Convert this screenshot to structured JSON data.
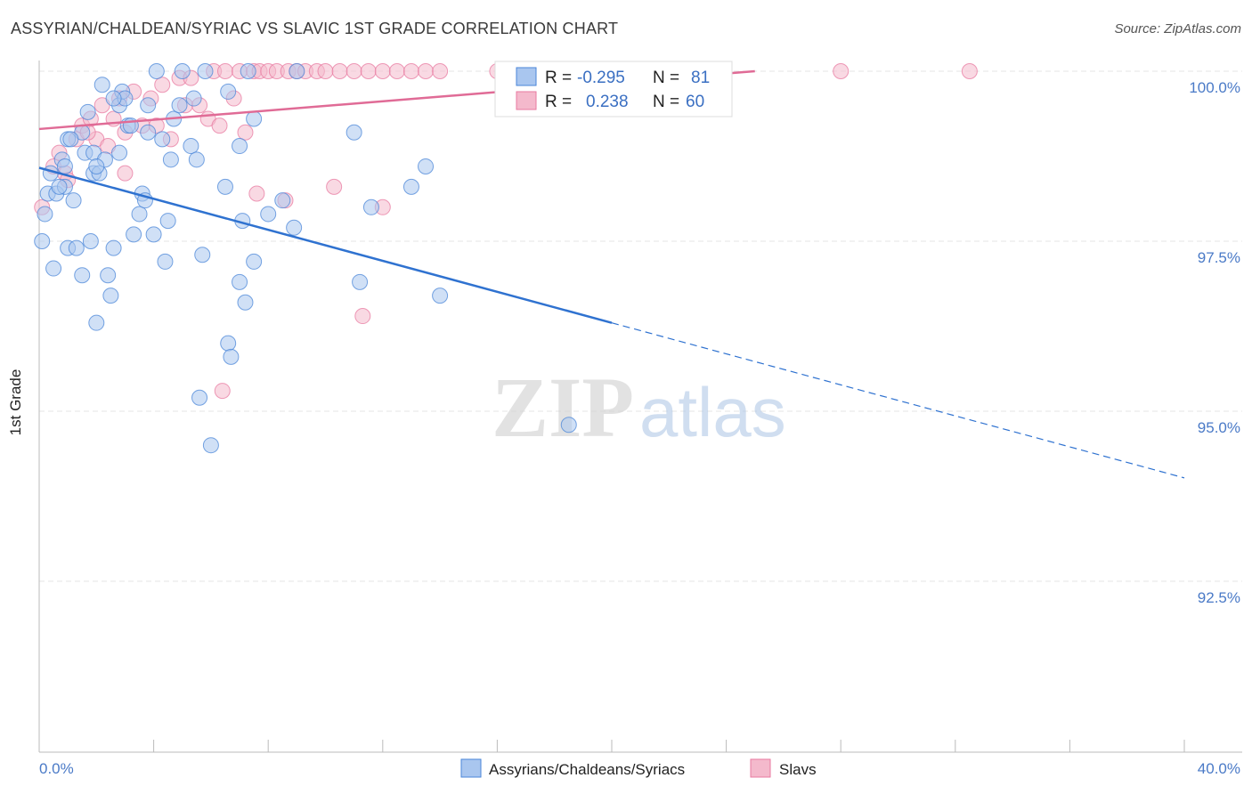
{
  "title": "ASSYRIAN/CHALDEAN/SYRIAC VS SLAVIC 1ST GRADE CORRELATION CHART",
  "source": "Source: ZipAtlas.com",
  "watermark": {
    "zip": "ZIP",
    "atlas": "atlas"
  },
  "chart_data": {
    "type": "scatter",
    "title": "ASSYRIAN/CHALDEAN/SYRIAC VS SLAVIC 1ST GRADE CORRELATION CHART",
    "xlabel": "",
    "ylabel": "1st Grade",
    "xlim": [
      0,
      40
    ],
    "ylim": [
      90.2,
      100.4
    ],
    "x_tick_labels": [
      "0.0%",
      "40.0%"
    ],
    "y_ticks": [
      92.5,
      95.0,
      97.5,
      100.0
    ],
    "y_tick_labels": [
      "92.5%",
      "95.0%",
      "97.5%",
      "100.0%"
    ],
    "grid": true,
    "legend_position": "bottom",
    "colors": {
      "blue": "#4a86d8",
      "pink": "#e87aa0",
      "blue_fill": "#a9c6ef",
      "pink_fill": "#f4b9cc"
    },
    "stats": [
      {
        "r_label": "R =",
        "r_value": "-0.295",
        "n_label": "N =",
        "n_value": "81"
      },
      {
        "r_label": "R =",
        "r_value": "0.238",
        "n_label": "N = ",
        "n_value": "60"
      }
    ],
    "series": [
      {
        "name": "Assyrians/Chaldeans/Syriacs",
        "color": "#4a86d8",
        "trend": {
          "x": [
            0,
            20
          ],
          "y": [
            98.58,
            96.3
          ],
          "dash_to_x": 40
        },
        "points": [
          [
            0.1,
            97.5
          ],
          [
            0.3,
            98.2
          ],
          [
            0.4,
            98.5
          ],
          [
            0.5,
            97.1
          ],
          [
            0.6,
            98.2
          ],
          [
            0.8,
            98.7
          ],
          [
            0.9,
            98.3
          ],
          [
            1.0,
            99.0
          ],
          [
            0.9,
            98.6
          ],
          [
            1.0,
            97.4
          ],
          [
            1.2,
            98.1
          ],
          [
            1.3,
            97.4
          ],
          [
            1.5,
            97.0
          ],
          [
            1.5,
            99.1
          ],
          [
            1.6,
            98.8
          ],
          [
            1.7,
            99.4
          ],
          [
            1.8,
            97.5
          ],
          [
            1.9,
            98.5
          ],
          [
            1.9,
            98.8
          ],
          [
            2.0,
            96.3
          ],
          [
            2.1,
            98.5
          ],
          [
            2.2,
            99.8
          ],
          [
            2.3,
            98.7
          ],
          [
            2.4,
            97.0
          ],
          [
            2.5,
            96.7
          ],
          [
            2.6,
            97.4
          ],
          [
            2.8,
            98.8
          ],
          [
            2.8,
            99.5
          ],
          [
            2.9,
            99.7
          ],
          [
            3.0,
            99.6
          ],
          [
            3.1,
            99.2
          ],
          [
            3.3,
            97.6
          ],
          [
            3.5,
            97.9
          ],
          [
            3.6,
            98.2
          ],
          [
            3.7,
            98.1
          ],
          [
            3.8,
            99.1
          ],
          [
            3.8,
            99.5
          ],
          [
            4.0,
            97.6
          ],
          [
            4.1,
            100.0
          ],
          [
            4.3,
            99.0
          ],
          [
            4.4,
            97.2
          ],
          [
            4.5,
            97.8
          ],
          [
            4.7,
            99.3
          ],
          [
            4.9,
            99.5
          ],
          [
            5.0,
            100.0
          ],
          [
            5.3,
            98.9
          ],
          [
            5.4,
            99.6
          ],
          [
            5.5,
            98.7
          ],
          [
            5.6,
            95.2
          ],
          [
            5.7,
            97.3
          ],
          [
            5.8,
            100.0
          ],
          [
            6.0,
            94.5
          ],
          [
            6.5,
            98.3
          ],
          [
            6.6,
            96.0
          ],
          [
            6.6,
            99.7
          ],
          [
            6.7,
            95.8
          ],
          [
            7.0,
            96.9
          ],
          [
            7.0,
            98.9
          ],
          [
            7.1,
            97.8
          ],
          [
            7.2,
            96.6
          ],
          [
            7.3,
            100.0
          ],
          [
            7.5,
            99.3
          ],
          [
            7.5,
            97.2
          ],
          [
            8.0,
            97.9
          ],
          [
            8.5,
            98.1
          ],
          [
            8.9,
            97.7
          ],
          [
            9.0,
            100.0
          ],
          [
            11.0,
            99.1
          ],
          [
            11.2,
            96.9
          ],
          [
            11.6,
            98.0
          ],
          [
            13.0,
            98.3
          ],
          [
            13.5,
            98.6
          ],
          [
            14.0,
            96.7
          ],
          [
            18.5,
            94.8
          ],
          [
            0.2,
            97.9
          ],
          [
            1.1,
            99.0
          ],
          [
            2.6,
            99.6
          ],
          [
            3.2,
            99.2
          ],
          [
            4.6,
            98.7
          ],
          [
            0.7,
            98.3
          ],
          [
            2.0,
            98.6
          ]
        ]
      },
      {
        "name": "Slavs",
        "color": "#e87aa0",
        "trend": {
          "x": [
            0,
            25
          ],
          "y": [
            99.15,
            100.0
          ],
          "dash_to_x": null
        },
        "points": [
          [
            0.1,
            98.0
          ],
          [
            0.5,
            98.6
          ],
          [
            0.7,
            98.8
          ],
          [
            0.9,
            98.5
          ],
          [
            1.0,
            98.4
          ],
          [
            1.3,
            99.0
          ],
          [
            1.5,
            99.2
          ],
          [
            1.8,
            99.3
          ],
          [
            2.0,
            99.0
          ],
          [
            2.2,
            99.5
          ],
          [
            2.4,
            98.9
          ],
          [
            2.6,
            99.3
          ],
          [
            2.8,
            99.6
          ],
          [
            3.0,
            99.1
          ],
          [
            3.3,
            99.7
          ],
          [
            3.6,
            99.2
          ],
          [
            3.9,
            99.6
          ],
          [
            4.1,
            99.2
          ],
          [
            4.3,
            99.8
          ],
          [
            4.6,
            99.0
          ],
          [
            4.9,
            99.9
          ],
          [
            5.1,
            99.5
          ],
          [
            5.3,
            99.9
          ],
          [
            5.6,
            99.5
          ],
          [
            5.9,
            99.3
          ],
          [
            6.1,
            100.0
          ],
          [
            6.3,
            99.2
          ],
          [
            6.5,
            100.0
          ],
          [
            6.8,
            99.6
          ],
          [
            7.0,
            100.0
          ],
          [
            7.2,
            99.1
          ],
          [
            7.5,
            100.0
          ],
          [
            7.7,
            100.0
          ],
          [
            8.0,
            100.0
          ],
          [
            8.3,
            100.0
          ],
          [
            8.7,
            100.0
          ],
          [
            9.0,
            100.0
          ],
          [
            9.3,
            100.0
          ],
          [
            9.7,
            100.0
          ],
          [
            10.0,
            100.0
          ],
          [
            10.5,
            100.0
          ],
          [
            11.0,
            100.0
          ],
          [
            11.5,
            100.0
          ],
          [
            12.0,
            100.0
          ],
          [
            12.5,
            100.0
          ],
          [
            13.0,
            100.0
          ],
          [
            13.5,
            100.0
          ],
          [
            14.0,
            100.0
          ],
          [
            16.0,
            100.0
          ],
          [
            20.0,
            100.0
          ],
          [
            28.0,
            100.0
          ],
          [
            32.5,
            100.0
          ],
          [
            7.6,
            98.2
          ],
          [
            8.6,
            98.1
          ],
          [
            10.3,
            98.3
          ],
          [
            12.0,
            98.0
          ],
          [
            11.3,
            96.4
          ],
          [
            6.4,
            95.3
          ],
          [
            1.7,
            99.1
          ],
          [
            3.0,
            98.5
          ]
        ]
      }
    ]
  },
  "legend": {
    "items": [
      {
        "label": "Assyrians/Chaldeans/Syriacs"
      },
      {
        "label": "Slavs"
      }
    ]
  }
}
